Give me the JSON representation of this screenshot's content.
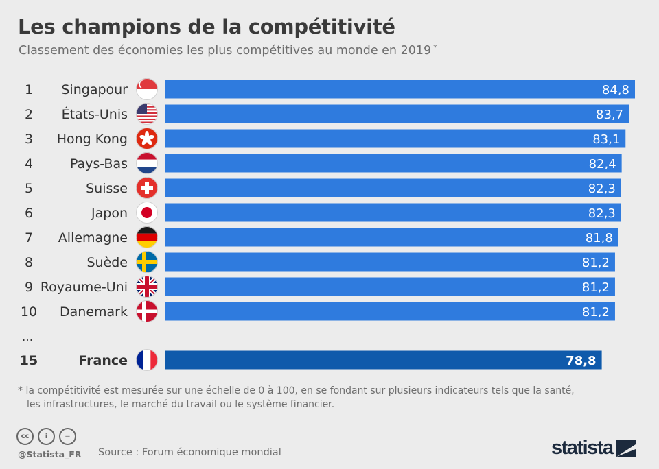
{
  "title": "Les champions de la compétitivité",
  "subtitle": "Classement des économies les plus compétitives au monde en 2019",
  "subtitle_mark": "*",
  "ellipsis": "...",
  "colors": {
    "bar": "#2f7bde",
    "highlight": "#0f5aab",
    "background": "#ececec"
  },
  "chart_data": {
    "type": "bar",
    "orientation": "horizontal",
    "xlim": [
      0,
      84.8
    ],
    "rows": [
      {
        "rank": "1",
        "country": "Singapour",
        "value": 84.8,
        "label": "84,8",
        "flag": "singapore-flag-icon"
      },
      {
        "rank": "2",
        "country": "États-Unis",
        "value": 83.7,
        "label": "83,7",
        "flag": "usa-flag-icon"
      },
      {
        "rank": "3",
        "country": "Hong Kong",
        "value": 83.1,
        "label": "83,1",
        "flag": "hong-kong-flag-icon"
      },
      {
        "rank": "4",
        "country": "Pays-Bas",
        "value": 82.4,
        "label": "82,4",
        "flag": "netherlands-flag-icon"
      },
      {
        "rank": "5",
        "country": "Suisse",
        "value": 82.3,
        "label": "82,3",
        "flag": "switzerland-flag-icon"
      },
      {
        "rank": "6",
        "country": "Japon",
        "value": 82.3,
        "label": "82,3",
        "flag": "japan-flag-icon"
      },
      {
        "rank": "7",
        "country": "Allemagne",
        "value": 81.8,
        "label": "81,8",
        "flag": "germany-flag-icon"
      },
      {
        "rank": "8",
        "country": "Suède",
        "value": 81.2,
        "label": "81,2",
        "flag": "sweden-flag-icon"
      },
      {
        "rank": "9",
        "country": "Royaume-Uni",
        "value": 81.2,
        "label": "81,2",
        "flag": "uk-flag-icon"
      },
      {
        "rank": "10",
        "country": "Danemark",
        "value": 81.2,
        "label": "81,2",
        "flag": "denmark-flag-icon"
      }
    ],
    "highlight": {
      "rank": "15",
      "country": "France",
      "value": 78.8,
      "label": "78,8",
      "flag": "france-flag-icon"
    }
  },
  "footnote": {
    "line1": "* la compétitivité est mesurée sur une échelle de 0 à 100, en se fondant sur plusieurs indicateurs tels que la santé,",
    "line2": "les infrastructures, le marché du travail ou le système financier."
  },
  "footer": {
    "cc_icons": [
      "cc",
      "by",
      "nd"
    ],
    "cc_labels": [
      "cc",
      "i",
      "="
    ],
    "handle": "@Statista_FR",
    "source": "Source : Forum économique mondial",
    "logo": "statista"
  }
}
